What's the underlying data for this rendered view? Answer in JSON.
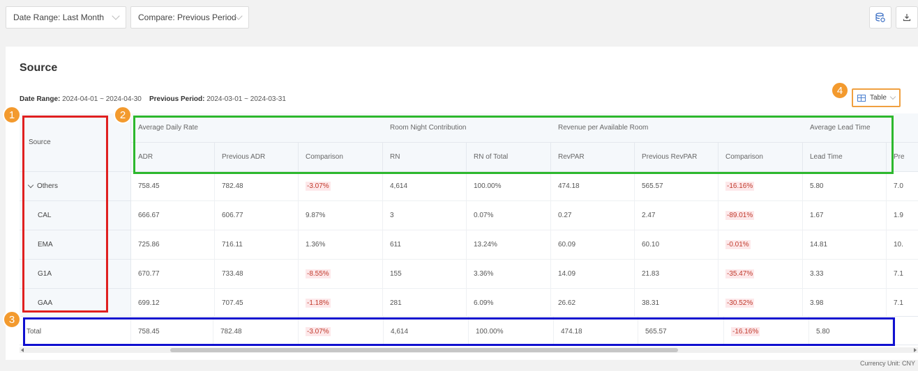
{
  "filters": {
    "date_range": "Date Range: Last Month",
    "compare": "Compare: Previous Period"
  },
  "toolbar": {
    "icons": [
      "database-export-icon",
      "download-icon"
    ]
  },
  "card": {
    "title": "Source",
    "date_range_label": "Date Range:",
    "date_range_value": "2024-04-01 ~ 2024-04-30",
    "previous_label": "Previous Period:",
    "previous_value": "2024-03-01 ~ 2024-03-31",
    "view_select": "Table"
  },
  "table": {
    "source_header": "Source",
    "groups": [
      "Average Daily Rate",
      "Room Night Contribution",
      "Revenue per Available Room",
      "Average Lead Time"
    ],
    "columns": [
      "ADR",
      "Previous ADR",
      "Comparison",
      "RN",
      "RN of Total",
      "RevPAR",
      "Previous RevPAR",
      "Comparison",
      "Lead Time",
      "Pre"
    ],
    "rows": [
      {
        "source": "Others",
        "cells": [
          "758.45",
          "782.48",
          "-3.07%",
          "4,614",
          "100.00%",
          "474.18",
          "565.57",
          "-16.16%",
          "5.80",
          "7.0"
        ]
      },
      {
        "source": "CAL",
        "cells": [
          "666.67",
          "606.77",
          "9.87%",
          "3",
          "0.07%",
          "0.27",
          "2.47",
          "-89.01%",
          "1.67",
          "1.9"
        ]
      },
      {
        "source": "EMA",
        "cells": [
          "725.86",
          "716.11",
          "1.36%",
          "611",
          "13.24%",
          "60.09",
          "60.10",
          "-0.01%",
          "14.81",
          "10."
        ]
      },
      {
        "source": "G1A",
        "cells": [
          "670.77",
          "733.48",
          "-8.55%",
          "155",
          "3.36%",
          "14.09",
          "21.83",
          "-35.47%",
          "3.33",
          "7.1"
        ]
      },
      {
        "source": "GAA",
        "cells": [
          "699.12",
          "707.45",
          "-1.18%",
          "281",
          "6.09%",
          "26.62",
          "38.31",
          "-30.52%",
          "3.98",
          "7.1"
        ]
      }
    ],
    "total": {
      "label": "Total",
      "cells": [
        "758.45",
        "782.48",
        "-3.07%",
        "4,614",
        "100.00%",
        "474.18",
        "565.57",
        "-16.16%",
        "5.80"
      ]
    }
  },
  "footer": {
    "currency": "Currency Unit: CNY"
  },
  "markers": [
    "1",
    "2",
    "3",
    "4"
  ],
  "colors": {
    "marker": "#f39a2e",
    "box1": "#e02020",
    "box2": "#2db82d",
    "box3": "#1010d0",
    "box4": "#f0a040",
    "negative_bg": "#fde8ea"
  }
}
